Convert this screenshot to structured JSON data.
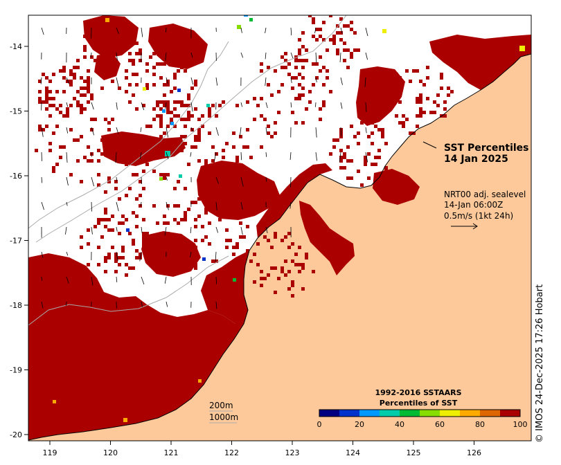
{
  "title": {
    "line1": "SST Percentiles",
    "line2": "14 Jan 2025"
  },
  "current_info": {
    "line1": "NRT00 adj. sealevel",
    "line2": "14-Jan 06:00Z",
    "line3": "0.5m/s (1kt 24h)"
  },
  "isobaths": {
    "shallow": "200m",
    "deep": "1000m"
  },
  "colorbar": {
    "title1": "1992-2016 SSTAARS",
    "title2": "Percentiles of SST",
    "ticks": [
      "0",
      "20",
      "40",
      "60",
      "80",
      "100"
    ],
    "colors": [
      "#000080",
      "#0033cc",
      "#0099ff",
      "#00ccaa",
      "#00bb33",
      "#88dd00",
      "#eeee00",
      "#ffaa00",
      "#dd6600",
      "#aa0000"
    ]
  },
  "axes": {
    "x_ticks": [
      "119",
      "120",
      "121",
      "122",
      "123",
      "124",
      "125",
      "126"
    ],
    "y_ticks": [
      "-14",
      "-15",
      "-16",
      "-17",
      "-18",
      "-19",
      "-20"
    ]
  },
  "credit": "© IMOS 24-Dec-2025 17:26 Hobart",
  "colors": {
    "land": "#fdc99b",
    "high_percentile": "#aa0000",
    "ocean_no_data": "#ffffff"
  }
}
